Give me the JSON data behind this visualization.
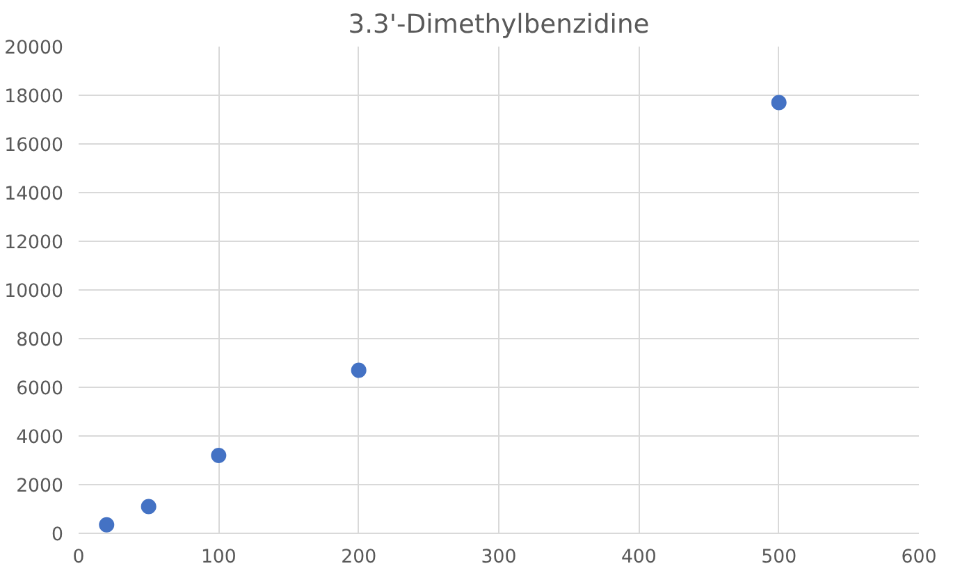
{
  "chart_data": {
    "type": "scatter",
    "title": "3.3'-Dimethylbenzidine",
    "x": [
      20,
      50,
      100,
      200,
      500
    ],
    "series": [
      {
        "color": "#4472c4",
        "values": [
          350,
          1100,
          3200,
          6700,
          17700
        ]
      }
    ],
    "xlim": [
      0,
      600
    ],
    "xticks": [
      0,
      100,
      200,
      300,
      400,
      500,
      600
    ],
    "ylim": [
      0,
      20000
    ],
    "yticks": [
      0,
      2000,
      4000,
      6000,
      8000,
      10000,
      12000,
      14000,
      16000,
      18000,
      20000
    ],
    "grid": true,
    "marker": "circle"
  }
}
